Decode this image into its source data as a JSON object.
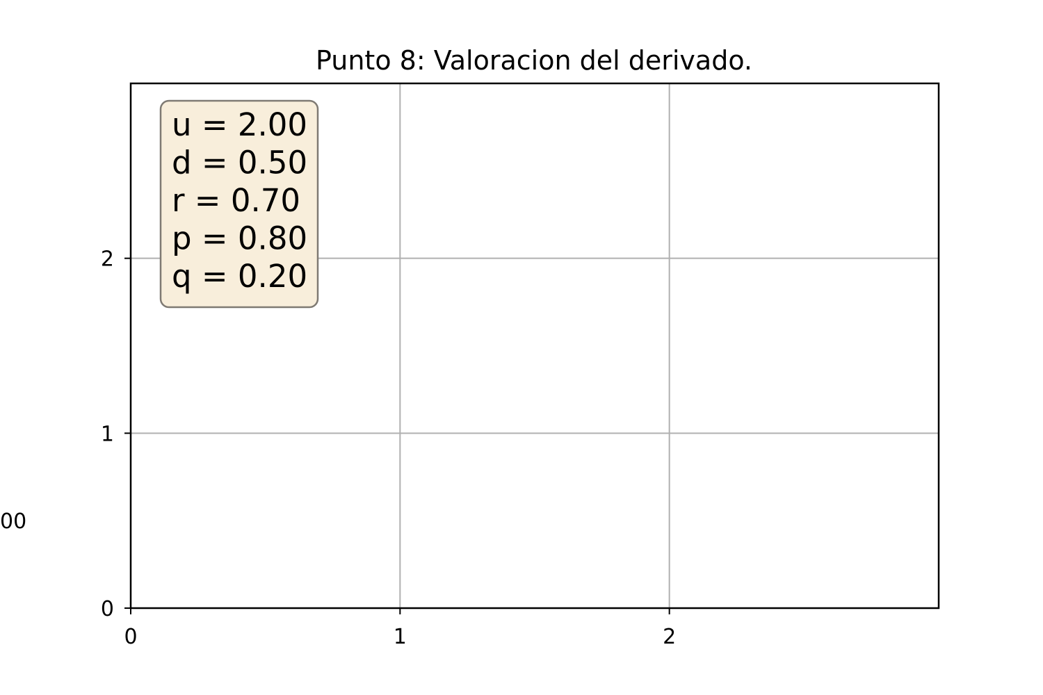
{
  "chart_data": {
    "type": "line",
    "title": "Punto 8: Valoracion del derivado.",
    "xlabel": "",
    "ylabel": "",
    "xlim": [
      0,
      3
    ],
    "ylim": [
      0,
      3
    ],
    "x_ticks": [
      0,
      1,
      2
    ],
    "y_ticks": [
      0,
      1,
      2
    ],
    "grid": true,
    "series": [],
    "stray_label": "00",
    "annotation": {
      "placement": "top-left",
      "lines": [
        "u = 2.00",
        "d = 0.50",
        "r = 0.70",
        "p = 0.80",
        "q = 0.20"
      ],
      "background_color": "#f8eedb",
      "border_color": "#7f7a73"
    }
  }
}
